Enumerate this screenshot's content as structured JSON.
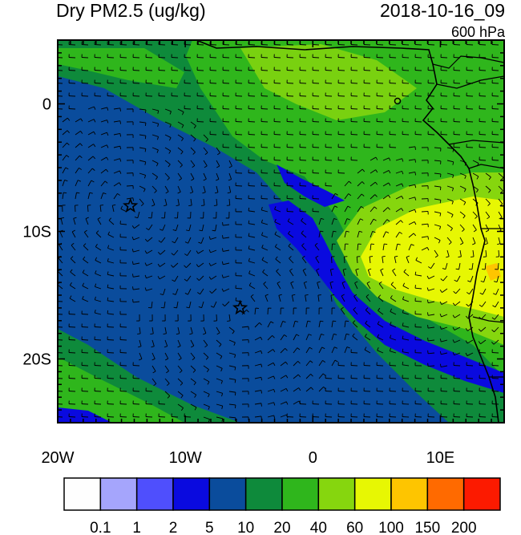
{
  "header": {
    "title": "Dry PM2.5 (ug/kg)",
    "datetime": "2018-10-16_09",
    "level": "600 hPa"
  },
  "axes": {
    "x_ticks": [
      {
        "value": -20,
        "label": "20W"
      },
      {
        "value": -10,
        "label": "10W"
      },
      {
        "value": 0,
        "label": "0"
      },
      {
        "value": 10,
        "label": "10E"
      }
    ],
    "y_ticks": [
      {
        "value": 0,
        "label": "0"
      },
      {
        "value": -10,
        "label": "10S"
      },
      {
        "value": -20,
        "label": "20S"
      }
    ],
    "lon_range": [
      -20,
      15
    ],
    "lat_range": [
      -25,
      5
    ]
  },
  "colorbar": {
    "colors": [
      "#fefefe",
      "#a5a5fc",
      "#4f4ffd",
      "#0a0adf",
      "#0a4c9c",
      "#0e8a3b",
      "#2fb61c",
      "#86d60e",
      "#e7f703",
      "#fec500",
      "#ff6a00",
      "#fc1a00"
    ],
    "labels": [
      "0.1",
      "1",
      "2",
      "5",
      "10",
      "20",
      "40",
      "60",
      "100",
      "150",
      "200"
    ]
  },
  "markers": [
    {
      "lon": -14.3,
      "lat": -8.0,
      "symbol": "star"
    },
    {
      "lon": -5.7,
      "lat": -16.0,
      "symbol": "star"
    }
  ]
}
